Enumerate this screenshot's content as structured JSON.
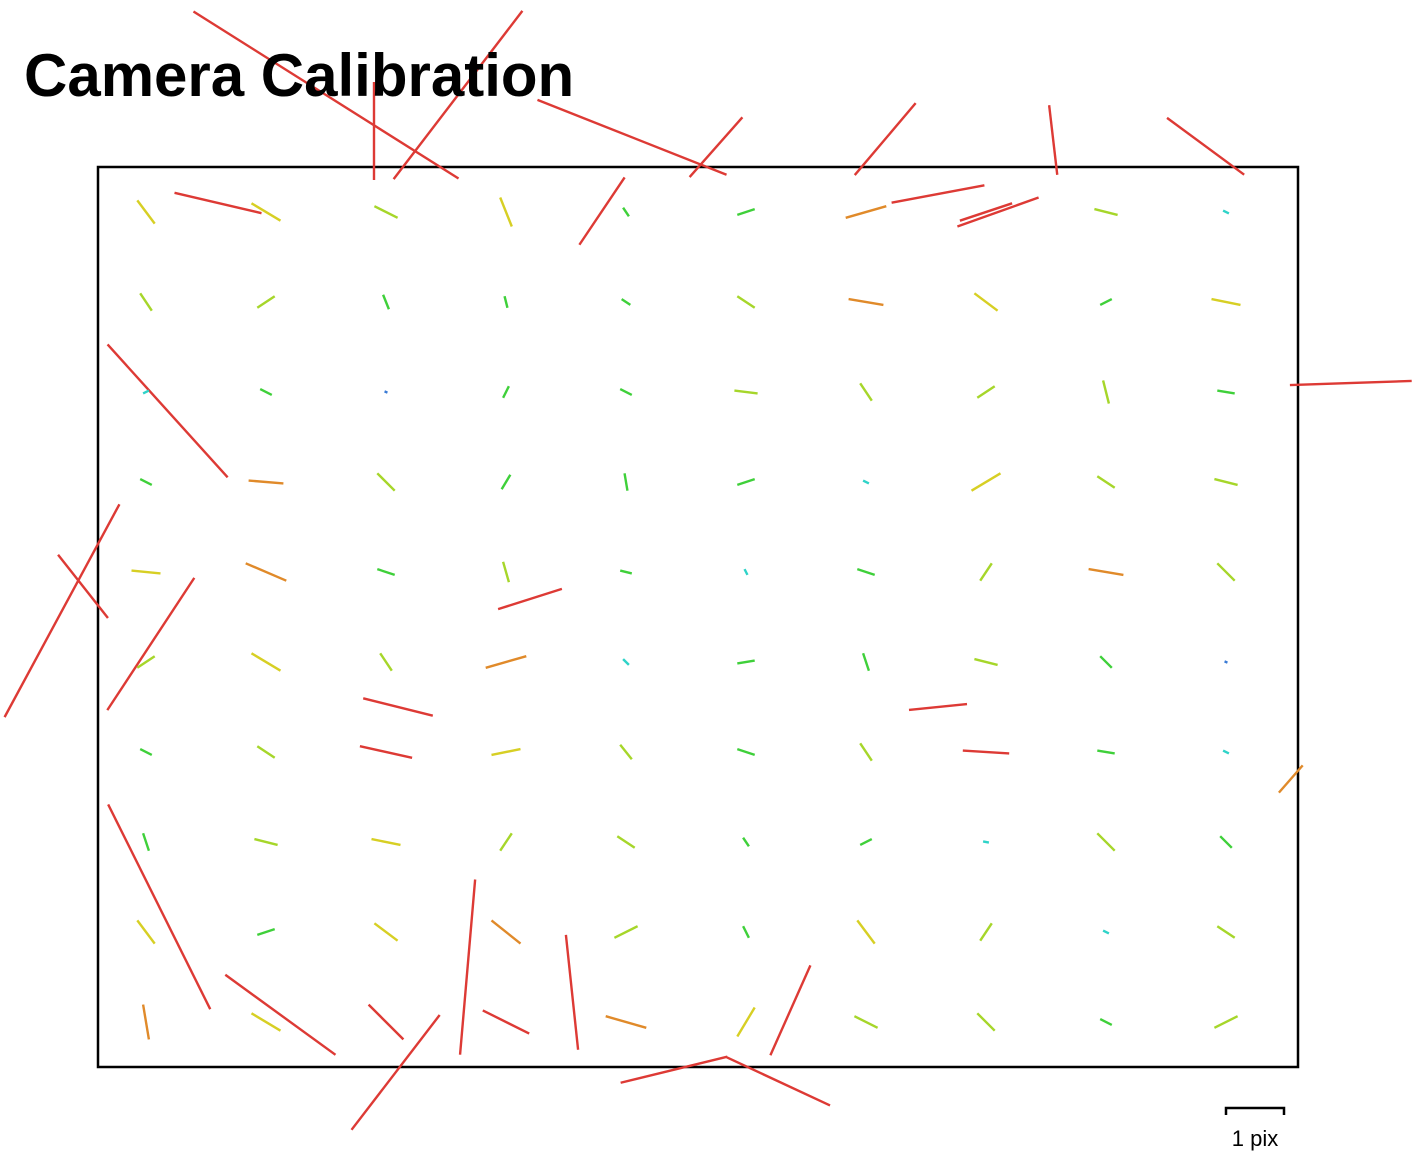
{
  "chart_data": {
    "type": "quiver",
    "title": "Camera Calibration",
    "xlim": [
      0,
      1
    ],
    "ylim": [
      0,
      1
    ],
    "scale_bar": {
      "value": 1,
      "label": "1 pix"
    },
    "color_scale": [
      {
        "max": 0.06,
        "color": "#3a7bd5"
      },
      {
        "max": 0.16,
        "color": "#2fd3c8"
      },
      {
        "max": 0.32,
        "color": "#3fd03a"
      },
      {
        "max": 0.45,
        "color": "#a6d62a"
      },
      {
        "max": 0.6,
        "color": "#d7cf24"
      },
      {
        "max": 0.8,
        "color": "#e08a2a"
      },
      {
        "max": 100,
        "color": "#dd3a35"
      }
    ],
    "vectors": [
      [
        0.19,
        -0.08,
        4.57,
        2.88
      ],
      [
        0.3,
        -0.08,
        -2.22,
        2.9
      ],
      [
        0.23,
        -0.04,
        0,
        1.69
      ],
      [
        0.445,
        -0.033,
        3.26,
        1.29
      ],
      [
        0.515,
        -0.022,
        -0.91,
        1.03
      ],
      [
        0.656,
        -0.031,
        -1.05,
        1.24
      ],
      [
        0.796,
        -0.03,
        0.14,
        1.2
      ],
      [
        0.923,
        -0.023,
        1.33,
        0.98
      ],
      [
        1.044,
        0.24,
        2.1,
        -0.07
      ],
      [
        0.058,
        0.271,
        2.07,
        2.29
      ],
      [
        -0.03,
        0.493,
        1.98,
        -3.67
      ],
      [
        0.051,
        0.822,
        1.76,
        3.53
      ],
      [
        0.248,
        1.006,
        1.52,
        -1.98
      ],
      [
        0.48,
        1.003,
        1.84,
        -0.45
      ],
      [
        0.567,
        1.016,
        1.78,
        0.83
      ],
      [
        0.308,
        0.889,
        0.26,
        -3.02
      ],
      [
        0.395,
        0.917,
        0.21,
        1.98
      ],
      [
        0.577,
        0.937,
        0.69,
        -1.55
      ],
      [
        0.152,
        0.942,
        1.9,
        1.38
      ],
      [
        0.044,
        0.53,
        1.5,
        -2.28
      ],
      [
        -0.0125,
        0.466,
        0.86,
        1.09
      ],
      [
        0.994,
        0.68,
        0.41,
        -0.47
      ],
      [
        0.42,
        0.049,
        0.78,
        -1.16
      ],
      [
        0.7,
        0.03,
        1.6,
        -0.3
      ],
      [
        0.75,
        0.05,
        1.4,
        -0.5
      ],
      [
        0.1,
        0.04,
        1.5,
        0.35
      ],
      [
        0.36,
        0.48,
        1.1,
        -0.35
      ],
      [
        0.25,
        0.6,
        1.2,
        0.3
      ],
      [
        0.7,
        0.6,
        1.0,
        -0.1
      ],
      [
        0.04,
        0.05,
        0.3,
        0.4
      ],
      [
        0.14,
        0.05,
        0.5,
        0.3
      ],
      [
        0.24,
        0.05,
        0.4,
        0.2
      ],
      [
        0.34,
        0.05,
        0.2,
        0.5
      ],
      [
        0.44,
        0.05,
        0.1,
        0.15
      ],
      [
        0.54,
        0.05,
        0.3,
        -0.1
      ],
      [
        0.64,
        0.05,
        0.7,
        -0.2
      ],
      [
        0.74,
        0.05,
        0.9,
        -0.3
      ],
      [
        0.84,
        0.05,
        0.4,
        0.1
      ],
      [
        0.94,
        0.05,
        0.1,
        0.05
      ],
      [
        0.04,
        0.15,
        0.2,
        0.3
      ],
      [
        0.14,
        0.15,
        0.3,
        -0.2
      ],
      [
        0.24,
        0.15,
        0.1,
        0.25
      ],
      [
        0.34,
        0.15,
        0.05,
        0.2
      ],
      [
        0.44,
        0.15,
        0.15,
        0.1
      ],
      [
        0.54,
        0.15,
        0.3,
        0.2
      ],
      [
        0.64,
        0.15,
        0.6,
        0.1
      ],
      [
        0.74,
        0.15,
        0.4,
        0.3
      ],
      [
        0.84,
        0.15,
        0.2,
        -0.1
      ],
      [
        0.94,
        0.15,
        0.5,
        0.1
      ],
      [
        0.04,
        0.25,
        0.1,
        -0.05
      ],
      [
        0.14,
        0.25,
        0.2,
        0.1
      ],
      [
        0.24,
        0.25,
        0.05,
        0.02
      ],
      [
        0.34,
        0.25,
        0.1,
        -0.2
      ],
      [
        0.44,
        0.25,
        0.2,
        0.1
      ],
      [
        0.54,
        0.25,
        0.4,
        0.05
      ],
      [
        0.64,
        0.25,
        0.2,
        0.3
      ],
      [
        0.74,
        0.25,
        0.3,
        -0.2
      ],
      [
        0.84,
        0.25,
        0.1,
        0.4
      ],
      [
        0.94,
        0.25,
        0.3,
        0.05
      ],
      [
        0.04,
        0.35,
        0.2,
        0.1
      ],
      [
        0.14,
        0.35,
        0.6,
        0.05
      ],
      [
        0.24,
        0.35,
        0.3,
        0.3
      ],
      [
        0.34,
        0.35,
        0.15,
        -0.25
      ],
      [
        0.44,
        0.35,
        0.05,
        0.3
      ],
      [
        0.54,
        0.35,
        0.3,
        -0.1
      ],
      [
        0.64,
        0.35,
        0.1,
        0.05
      ],
      [
        0.74,
        0.35,
        0.5,
        -0.3
      ],
      [
        0.84,
        0.35,
        0.3,
        0.2
      ],
      [
        0.94,
        0.35,
        0.4,
        0.1
      ],
      [
        0.04,
        0.45,
        0.5,
        0.05
      ],
      [
        0.14,
        0.45,
        0.7,
        0.3
      ],
      [
        0.24,
        0.45,
        0.3,
        0.1
      ],
      [
        0.34,
        0.45,
        0.1,
        0.35
      ],
      [
        0.44,
        0.45,
        0.2,
        0.05
      ],
      [
        0.54,
        0.45,
        0.05,
        0.1
      ],
      [
        0.64,
        0.45,
        0.3,
        0.1
      ],
      [
        0.74,
        0.45,
        0.2,
        -0.3
      ],
      [
        0.84,
        0.45,
        0.6,
        0.1
      ],
      [
        0.94,
        0.45,
        0.3,
        0.3
      ],
      [
        0.04,
        0.55,
        0.3,
        -0.2
      ],
      [
        0.14,
        0.55,
        0.5,
        0.3
      ],
      [
        0.24,
        0.55,
        0.2,
        0.3
      ],
      [
        0.34,
        0.55,
        0.7,
        -0.2
      ],
      [
        0.44,
        0.55,
        0.1,
        0.1
      ],
      [
        0.54,
        0.55,
        0.3,
        -0.05
      ],
      [
        0.64,
        0.55,
        0.1,
        0.3
      ],
      [
        0.74,
        0.55,
        0.4,
        0.1
      ],
      [
        0.84,
        0.55,
        0.2,
        0.2
      ],
      [
        0.94,
        0.55,
        0.05,
        0.02
      ],
      [
        0.04,
        0.65,
        0.2,
        0.1
      ],
      [
        0.14,
        0.65,
        0.3,
        0.2
      ],
      [
        0.24,
        0.65,
        0.9,
        0.2
      ],
      [
        0.34,
        0.65,
        0.5,
        -0.1
      ],
      [
        0.44,
        0.65,
        0.2,
        0.25
      ],
      [
        0.54,
        0.65,
        0.3,
        0.1
      ],
      [
        0.64,
        0.65,
        0.2,
        0.3
      ],
      [
        0.74,
        0.65,
        0.8,
        0.05
      ],
      [
        0.84,
        0.65,
        0.3,
        0.05
      ],
      [
        0.94,
        0.65,
        0.1,
        0.05
      ],
      [
        0.04,
        0.75,
        0.1,
        0.3
      ],
      [
        0.14,
        0.75,
        0.4,
        0.1
      ],
      [
        0.24,
        0.75,
        0.5,
        0.1
      ],
      [
        0.34,
        0.75,
        0.2,
        -0.3
      ],
      [
        0.44,
        0.75,
        0.3,
        0.2
      ],
      [
        0.54,
        0.75,
        0.1,
        0.15
      ],
      [
        0.64,
        0.75,
        0.2,
        -0.1
      ],
      [
        0.74,
        0.75,
        0.1,
        0.02
      ],
      [
        0.84,
        0.75,
        0.3,
        0.3
      ],
      [
        0.94,
        0.75,
        0.2,
        0.2
      ],
      [
        0.04,
        0.85,
        0.3,
        0.4
      ],
      [
        0.14,
        0.85,
        0.3,
        -0.1
      ],
      [
        0.24,
        0.85,
        0.4,
        0.3
      ],
      [
        0.34,
        0.85,
        0.5,
        0.4
      ],
      [
        0.44,
        0.85,
        0.4,
        -0.2
      ],
      [
        0.54,
        0.85,
        0.1,
        0.2
      ],
      [
        0.64,
        0.85,
        0.3,
        0.4
      ],
      [
        0.74,
        0.85,
        0.2,
        -0.3
      ],
      [
        0.84,
        0.85,
        0.1,
        0.05
      ],
      [
        0.94,
        0.85,
        0.3,
        0.2
      ],
      [
        0.04,
        0.95,
        0.1,
        0.6
      ],
      [
        0.14,
        0.95,
        0.5,
        0.3
      ],
      [
        0.24,
        0.95,
        0.6,
        0.6
      ],
      [
        0.34,
        0.95,
        0.8,
        0.4
      ],
      [
        0.44,
        0.95,
        0.7,
        0.2
      ],
      [
        0.54,
        0.95,
        0.3,
        -0.5
      ],
      [
        0.64,
        0.95,
        0.4,
        0.2
      ],
      [
        0.74,
        0.95,
        0.3,
        0.3
      ],
      [
        0.84,
        0.95,
        0.2,
        0.1
      ],
      [
        0.94,
        0.95,
        0.4,
        -0.2
      ]
    ]
  }
}
